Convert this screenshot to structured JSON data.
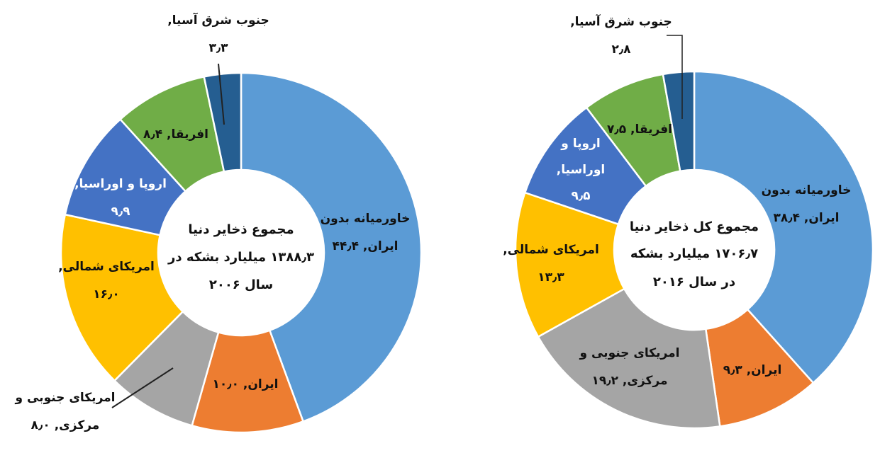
{
  "chart_data": [
    {
      "type": "donut",
      "center_text": [
        "مجموع ذخایر دنیا",
        "۱۳۸۸٫۳ میلیارد بشکه در",
        "سال ۲۰۰۶"
      ],
      "slices": [
        {
          "name": "خاورمیانه بدون ایران",
          "value": 44.4,
          "label": [
            "خاورمیانه بدون",
            "ایران, ۴۴٫۴"
          ],
          "color": "#5B9BD5"
        },
        {
          "name": "ایران",
          "value": 10.0,
          "label": [
            "ایران, ۱۰٫۰"
          ],
          "color": "#ED7D31"
        },
        {
          "name": "امریکای جنوبی و مرکزی",
          "value": 8.0,
          "label": [
            "امریکای جنوبی و",
            "مرکزی, ۸٫۰"
          ],
          "color": "#A5A5A5"
        },
        {
          "name": "امریکای شمالی",
          "value": 16.0,
          "label": [
            "امریکای شمالی,",
            "۱۶٫۰"
          ],
          "color": "#FFC000"
        },
        {
          "name": "اروپا و اوراسیا",
          "value": 9.9,
          "label": [
            "اروپا و اوراسیا,",
            "۹٫۹"
          ],
          "color": "#4472C4"
        },
        {
          "name": "افریقا",
          "value": 8.4,
          "label": [
            "افریقا, ۸٫۴"
          ],
          "color": "#70AD47"
        },
        {
          "name": "جنوب شرق آسیا",
          "value": 3.3,
          "label": [
            "جنوب شرق آسیا,",
            "۳٫۳"
          ],
          "color": "#255E91"
        }
      ]
    },
    {
      "type": "donut",
      "center_text": [
        "مجموع کل ذخایر دنیا",
        "۱۷۰۶٫۷ میلیارد بشکه",
        "در سال ۲۰۱۶"
      ],
      "slices": [
        {
          "name": "خاورمیانه بدون ایران",
          "value": 38.4,
          "label": [
            "خاورمیانه بدون",
            "ایران, ۳۸٫۴"
          ],
          "color": "#5B9BD5"
        },
        {
          "name": "ایران",
          "value": 9.3,
          "label": [
            "ایران, ۹٫۳"
          ],
          "color": "#ED7D31"
        },
        {
          "name": "امریکای جنوبی و مرکزی",
          "value": 19.2,
          "label": [
            "امریکای جنوبی و",
            "مرکزی, ۱۹٫۲"
          ],
          "color": "#A5A5A5"
        },
        {
          "name": "امریکای شمالی",
          "value": 13.3,
          "label": [
            "امریکای شمالی,",
            "۱۳٫۳"
          ],
          "color": "#FFC000"
        },
        {
          "name": "اروپا و اوراسیا",
          "value": 9.5,
          "label": [
            "اروپا و",
            "اوراسیا,",
            "۹٫۵"
          ],
          "color": "#4472C4"
        },
        {
          "name": "افریقا",
          "value": 7.5,
          "label": [
            "افریقا, ۷٫۵"
          ],
          "color": "#70AD47"
        },
        {
          "name": "جنوب شرق آسیا",
          "value": 2.8,
          "label": [
            "جنوب شرق آسیا,",
            "۲٫۸"
          ],
          "color": "#255E91"
        }
      ]
    }
  ]
}
